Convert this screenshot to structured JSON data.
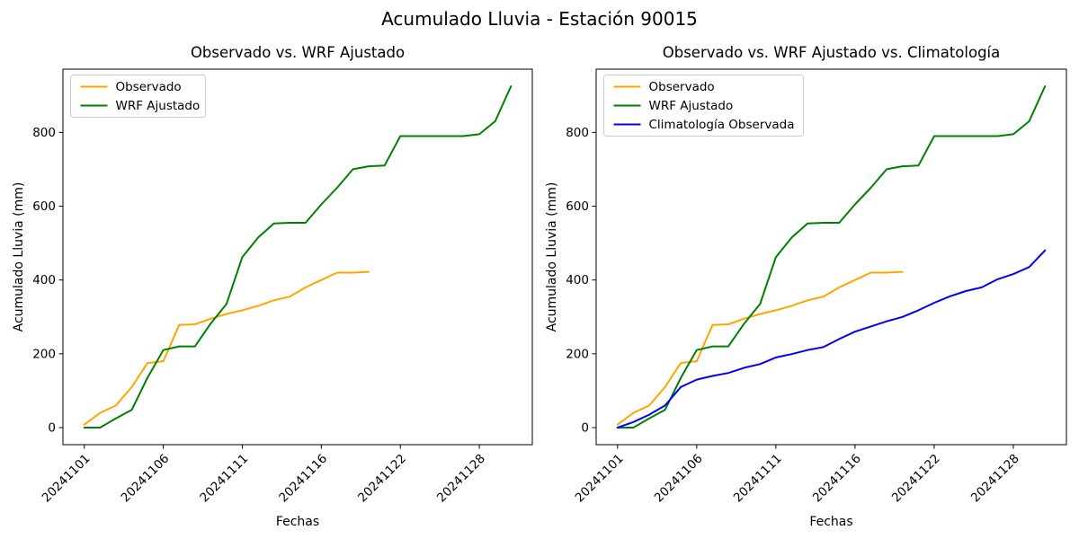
{
  "figure": {
    "title": "Acumulado Lluvia - Estación 90015"
  },
  "colors": {
    "observado": "#FFA500",
    "wrf_ajustado": "#008000",
    "climatologia": "#0000FF",
    "text": "#000000",
    "axis": "#000000",
    "legend_border": "#CCCCCC",
    "background": "#FFFFFF"
  },
  "chart_data": [
    {
      "type": "line",
      "title": "Observado vs. WRF Ajustado",
      "xlabel": "Fechas",
      "ylabel": "Acumulado Lluvia (mm)",
      "x_categories": [
        "20241101",
        "20241102",
        "20241103",
        "20241104",
        "20241105",
        "20241106",
        "20241107",
        "20241108",
        "20241109",
        "20241110",
        "20241111",
        "20241112",
        "20241113",
        "20241114",
        "20241115",
        "20241116",
        "20241117",
        "20241119",
        "20241120",
        "20241121",
        "20241122",
        "20241123",
        "20241125",
        "20241126",
        "20241127",
        "20241128",
        "20241129",
        "20241130"
      ],
      "x_tick_indices": [
        0,
        5,
        10,
        15,
        20,
        25
      ],
      "x_tick_labels": [
        "20241101",
        "20241106",
        "20241111",
        "20241116",
        "20241122",
        "20241128"
      ],
      "y_ticks": [
        0,
        200,
        400,
        600,
        800
      ],
      "ylim": [
        -46.25,
        971.25
      ],
      "grid": false,
      "legend_position": "upper-left",
      "series": [
        {
          "name": "Observado",
          "color": "#FFA500",
          "values": [
            8,
            40,
            60,
            110,
            175,
            180,
            278,
            280,
            295,
            308,
            318,
            330,
            345,
            355,
            380,
            400,
            420,
            420,
            422
          ]
        },
        {
          "name": "WRF Ajustado",
          "color": "#008000",
          "values": [
            0,
            0,
            25,
            48,
            135,
            210,
            220,
            220,
            282,
            335,
            462,
            515,
            553,
            555,
            555,
            605,
            650,
            700,
            708,
            710,
            790,
            790,
            790,
            790,
            790,
            795,
            830,
            925
          ]
        }
      ]
    },
    {
      "type": "line",
      "title": "Observado vs. WRF Ajustado vs. Climatología",
      "xlabel": "Fechas",
      "ylabel": "Acumulado Lluvia (mm)",
      "x_categories": [
        "20241101",
        "20241102",
        "20241103",
        "20241104",
        "20241105",
        "20241106",
        "20241107",
        "20241108",
        "20241109",
        "20241110",
        "20241111",
        "20241112",
        "20241113",
        "20241114",
        "20241115",
        "20241116",
        "20241117",
        "20241119",
        "20241120",
        "20241121",
        "20241122",
        "20241123",
        "20241125",
        "20241126",
        "20241127",
        "20241128",
        "20241129",
        "20241130"
      ],
      "x_tick_indices": [
        0,
        5,
        10,
        15,
        20,
        25
      ],
      "x_tick_labels": [
        "20241101",
        "20241106",
        "20241111",
        "20241116",
        "20241122",
        "20241128"
      ],
      "y_ticks": [
        0,
        200,
        400,
        600,
        800
      ],
      "ylim": [
        -46.25,
        971.25
      ],
      "grid": false,
      "legend_position": "upper-left",
      "series": [
        {
          "name": "Observado",
          "color": "#FFA500",
          "values": [
            8,
            40,
            60,
            110,
            175,
            180,
            278,
            280,
            295,
            308,
            318,
            330,
            345,
            355,
            380,
            400,
            420,
            420,
            422
          ]
        },
        {
          "name": "WRF Ajustado",
          "color": "#008000",
          "values": [
            0,
            0,
            25,
            48,
            135,
            210,
            220,
            220,
            282,
            335,
            462,
            515,
            553,
            555,
            555,
            605,
            650,
            700,
            708,
            710,
            790,
            790,
            790,
            790,
            790,
            795,
            830,
            925
          ]
        },
        {
          "name": "Climatología Observada",
          "color": "#0000FF",
          "values": [
            0,
            15,
            35,
            60,
            110,
            130,
            140,
            148,
            162,
            172,
            190,
            199,
            210,
            218,
            240,
            260,
            274,
            288,
            300,
            318,
            338,
            356,
            370,
            380,
            402,
            416,
            435,
            480
          ]
        }
      ]
    }
  ]
}
